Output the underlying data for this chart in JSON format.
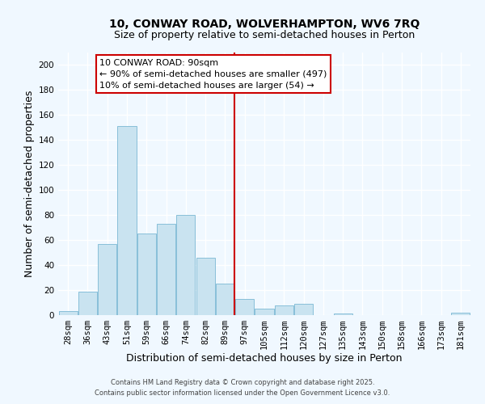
{
  "title_line1": "10, CONWAY ROAD, WOLVERHAMPTON, WV6 7RQ",
  "title_line2": "Size of property relative to semi-detached houses in Perton",
  "xlabel": "Distribution of semi-detached houses by size in Perton",
  "ylabel": "Number of semi-detached properties",
  "bar_labels": [
    "28sqm",
    "36sqm",
    "43sqm",
    "51sqm",
    "59sqm",
    "66sqm",
    "74sqm",
    "82sqm",
    "89sqm",
    "97sqm",
    "105sqm",
    "112sqm",
    "120sqm",
    "127sqm",
    "135sqm",
    "143sqm",
    "150sqm",
    "158sqm",
    "166sqm",
    "173sqm",
    "181sqm"
  ],
  "bar_values": [
    3,
    19,
    57,
    151,
    65,
    73,
    80,
    46,
    25,
    13,
    5,
    8,
    9,
    0,
    1,
    0,
    0,
    0,
    0,
    0,
    2
  ],
  "bar_color": "#c9e3f0",
  "bar_edge_color": "#7ab8d4",
  "ylim": [
    0,
    210
  ],
  "yticks": [
    0,
    20,
    40,
    60,
    80,
    100,
    120,
    140,
    160,
    180,
    200
  ],
  "vline_color": "#cc0000",
  "vline_x": 8.47,
  "annotation_title": "10 CONWAY ROAD: 90sqm",
  "annotation_line1": "← 90% of semi-detached houses are smaller (497)",
  "annotation_line2": "10% of semi-detached houses are larger (54) →",
  "annotation_box_color": "#ffffff",
  "annotation_box_edge": "#cc0000",
  "footer_line1": "Contains HM Land Registry data © Crown copyright and database right 2025.",
  "footer_line2": "Contains public sector information licensed under the Open Government Licence v3.0.",
  "background_color": "#f0f8ff",
  "plot_bg_color": "#f0f8ff",
  "grid_color": "#ffffff",
  "title_fontsize": 10,
  "subtitle_fontsize": 9,
  "axis_label_fontsize": 9,
  "tick_fontsize": 7.5,
  "footer_fontsize": 6,
  "ann_fontsize": 8
}
